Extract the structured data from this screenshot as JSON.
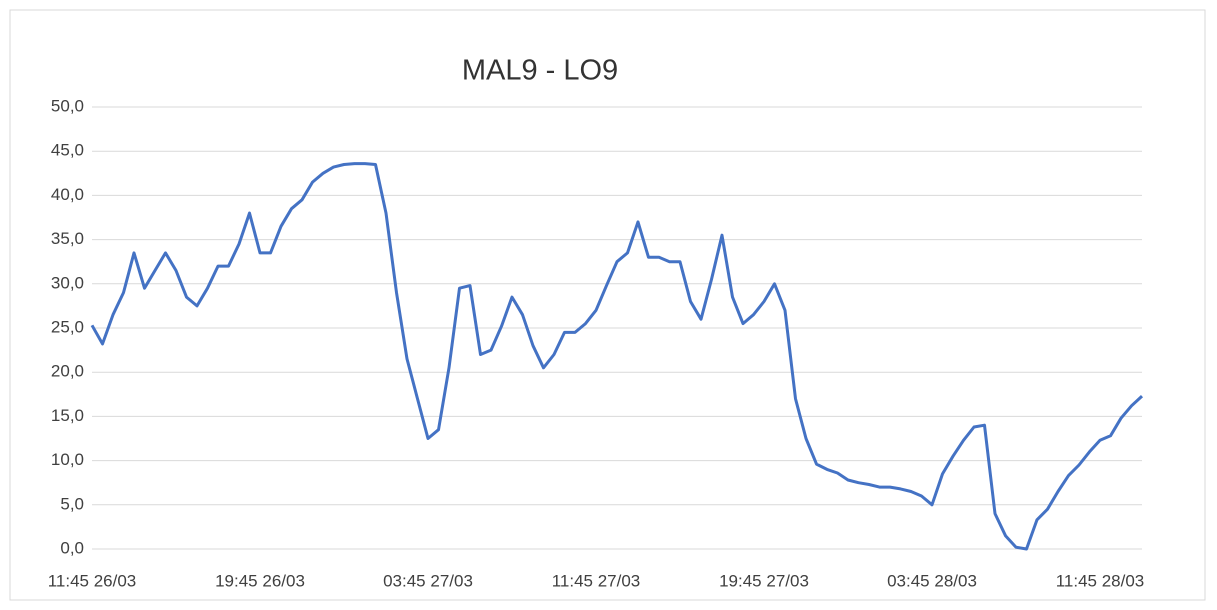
{
  "chart_data": {
    "type": "line",
    "title": "MAL9 - LO9",
    "categories": [
      "11:45 26/03",
      null,
      null,
      null,
      null,
      null,
      null,
      null,
      null,
      null,
      null,
      null,
      null,
      null,
      null,
      null,
      "19:45 26/03",
      null,
      null,
      null,
      null,
      null,
      null,
      null,
      null,
      null,
      null,
      null,
      null,
      null,
      null,
      null,
      "03:45 27/03",
      null,
      null,
      null,
      null,
      null,
      null,
      null,
      null,
      null,
      null,
      null,
      null,
      null,
      null,
      null,
      "11:45 27/03",
      null,
      null,
      null,
      null,
      null,
      null,
      null,
      null,
      null,
      null,
      null,
      null,
      null,
      null,
      null,
      "19:45 27/03",
      null,
      null,
      null,
      null,
      null,
      null,
      null,
      null,
      null,
      null,
      null,
      null,
      null,
      null,
      null,
      "03:45 28/03",
      null,
      null,
      null,
      null,
      null,
      null,
      null,
      null,
      null,
      null,
      null,
      null,
      null,
      null,
      null,
      "11:45 28/03",
      null,
      null,
      null,
      null
    ],
    "series": [
      {
        "name": "MAL9 - LO9",
        "color": "#4472c4",
        "values": [
          25.3,
          23.2,
          26.5,
          29.0,
          33.5,
          29.5,
          31.5,
          33.5,
          31.5,
          28.5,
          27.5,
          29.5,
          32.0,
          32.0,
          34.5,
          38.0,
          33.5,
          33.5,
          36.5,
          38.5,
          39.5,
          41.5,
          42.5,
          43.2,
          43.5,
          43.6,
          43.6,
          43.5,
          38.0,
          29.0,
          21.5,
          17.0,
          12.5,
          13.5,
          20.5,
          29.5,
          29.8,
          22.0,
          22.5,
          25.2,
          28.5,
          26.5,
          23.0,
          20.5,
          22.0,
          24.5,
          24.5,
          25.5,
          27.0,
          29.8,
          32.5,
          33.5,
          37.0,
          33.0,
          33.0,
          32.5,
          32.5,
          28.0,
          26.0,
          30.5,
          35.5,
          28.5,
          25.5,
          26.5,
          28.0,
          30.0,
          27.0,
          17.0,
          12.5,
          9.6,
          9.0,
          8.6,
          7.8,
          7.5,
          7.3,
          7.0,
          7.0,
          6.8,
          6.5,
          6.0,
          5.0,
          8.5,
          10.5,
          12.3,
          13.8,
          14.0,
          4.0,
          1.5,
          0.2,
          0.0,
          3.3,
          4.5,
          6.5,
          8.3,
          9.5,
          11.0,
          12.3,
          12.8,
          14.8,
          16.2,
          17.3
        ]
      }
    ],
    "ylim": [
      0,
      50
    ],
    "yticks": [
      {
        "value": 0,
        "label": "0,0"
      },
      {
        "value": 5,
        "label": "5,0"
      },
      {
        "value": 10,
        "label": "10,0"
      },
      {
        "value": 15,
        "label": "15,0"
      },
      {
        "value": 20,
        "label": "20,0"
      },
      {
        "value": 25,
        "label": "25,0"
      },
      {
        "value": 30,
        "label": "30,0"
      },
      {
        "value": 35,
        "label": "35,0"
      },
      {
        "value": 40,
        "label": "40,0"
      },
      {
        "value": 45,
        "label": "45,0"
      },
      {
        "value": 50,
        "label": "50,0"
      }
    ],
    "grid": true
  }
}
